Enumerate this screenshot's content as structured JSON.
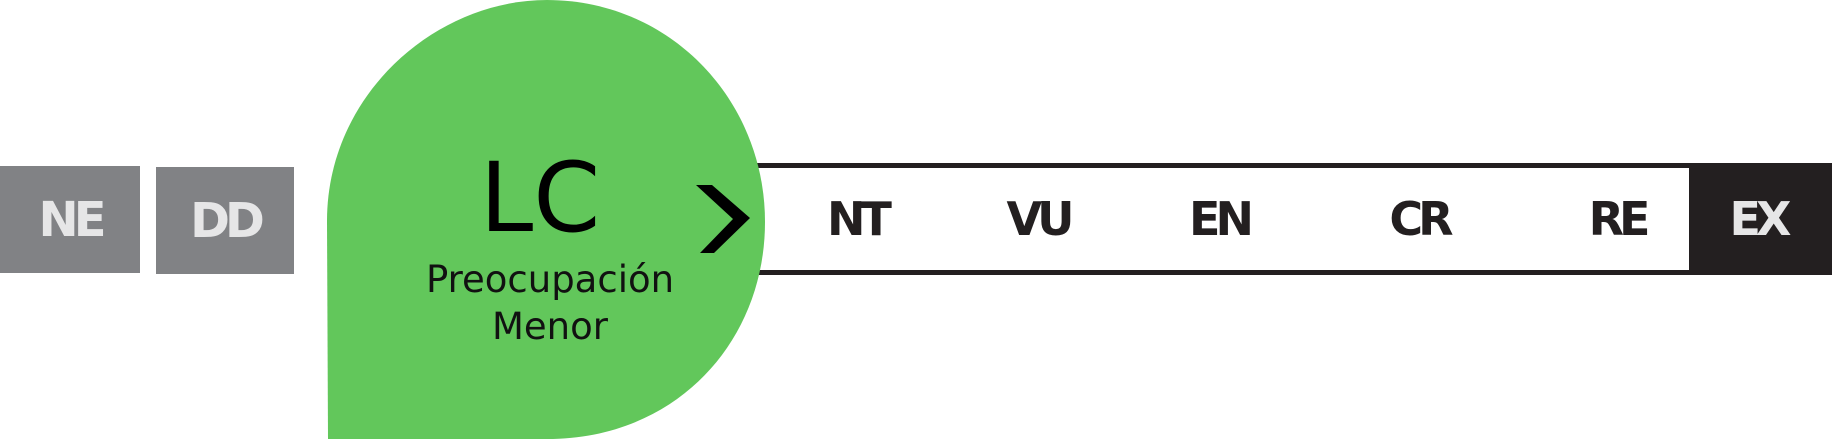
{
  "colors": {
    "least_concern": "#62c75b",
    "data_gray": "#818285",
    "dark": "#231f20",
    "light_text": "#e6e6e7"
  },
  "outside": {
    "ne": "NE",
    "dd": "DD"
  },
  "highlight": {
    "code": "LC",
    "name_line1": "Preocupación",
    "name_line2": "Menor",
    "icon": "chevron-right-icon"
  },
  "scale": {
    "categories": [
      "NT",
      "VU",
      "EN",
      "CR",
      "RE"
    ],
    "extinct": "EX"
  }
}
